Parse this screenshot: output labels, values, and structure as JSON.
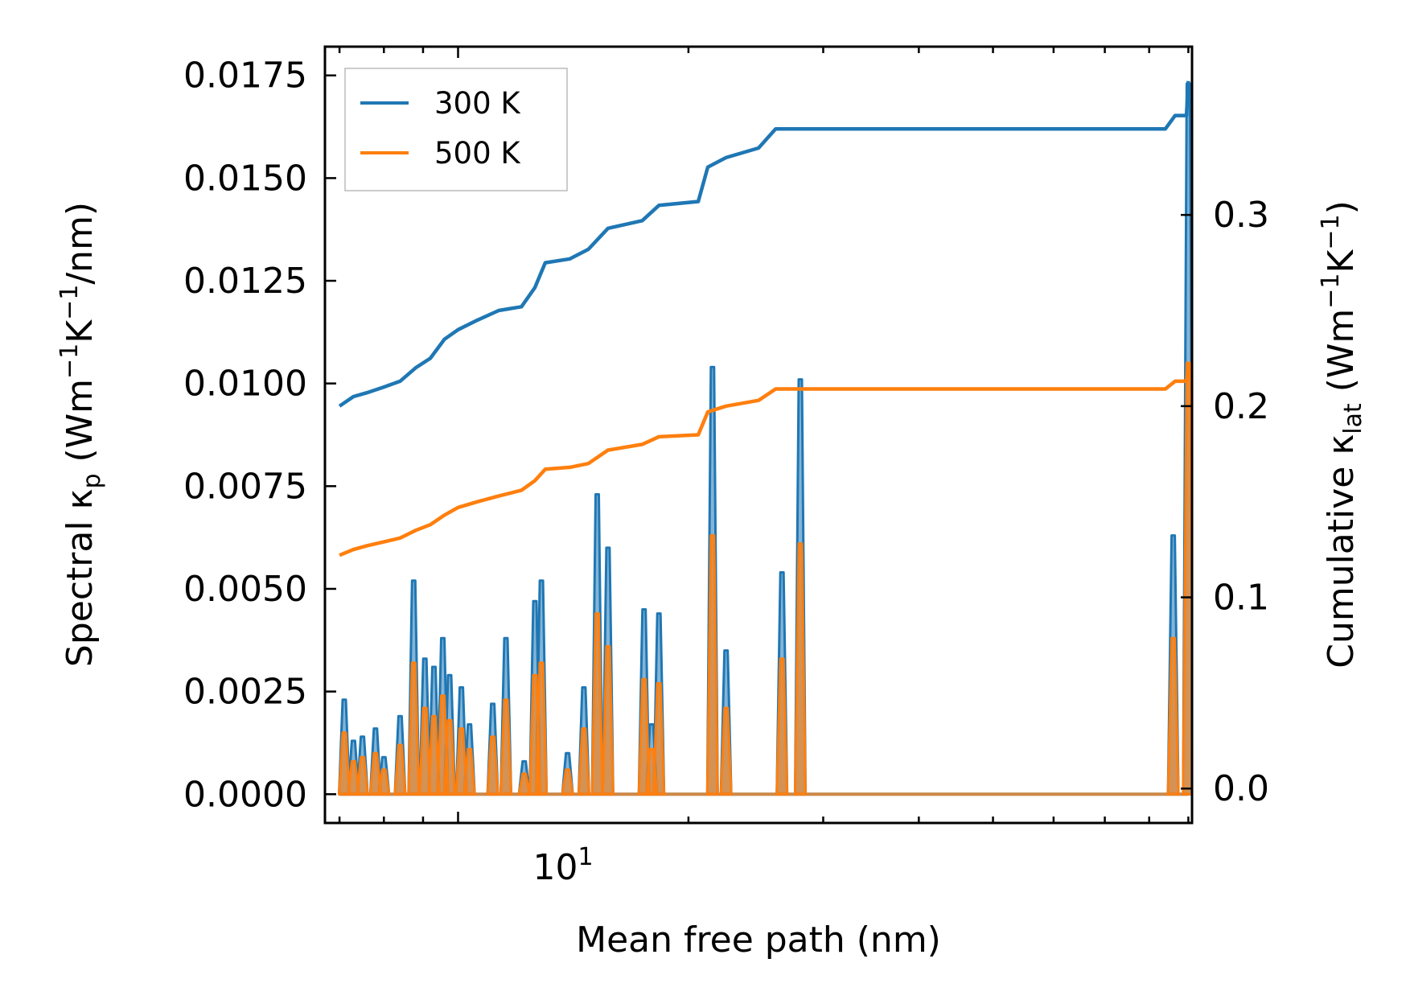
{
  "chart_data": {
    "type": "line",
    "title": "",
    "xlabel": "Mean free path (nm)",
    "ylabel_left": {
      "main": "Spectral κ",
      "sub": "p",
      "unit_pre": " (Wm",
      "sup1": "−1",
      "mid": "K",
      "sup2": "−1",
      "unit_post": "/nm)"
    },
    "ylabel_right": {
      "main": "Cumulative κ",
      "sub": "lat",
      "unit_pre": " (Wm",
      "sup1": "−1",
      "mid": "K",
      "sup2": "−1",
      "unit_post": ")"
    },
    "x_scale": "log",
    "xlim": [
      6.7,
      91
    ],
    "x_tick_label": {
      "base": "10",
      "exp": "1"
    },
    "ylim_left": [
      -0.0007,
      0.0182
    ],
    "ylim_right": [
      -0.018,
      0.388
    ],
    "left_ticks": [
      {
        "value": 0.0,
        "label": "0.0000"
      },
      {
        "value": 0.0025,
        "label": "0.0025"
      },
      {
        "value": 0.005,
        "label": "0.0050"
      },
      {
        "value": 0.0075,
        "label": "0.0075"
      },
      {
        "value": 0.01,
        "label": "0.0100"
      },
      {
        "value": 0.0125,
        "label": "0.0125"
      },
      {
        "value": 0.015,
        "label": "0.0150"
      },
      {
        "value": 0.0175,
        "label": "0.0175"
      }
    ],
    "right_ticks": [
      {
        "value": 0.0,
        "label": "0.0"
      },
      {
        "value": 0.1,
        "label": "0.1"
      },
      {
        "value": 0.2,
        "label": "0.2"
      },
      {
        "value": 0.3,
        "label": "0.3"
      }
    ],
    "legend": {
      "location": "top-left",
      "entries": [
        "300 K",
        "500 K"
      ]
    },
    "colors": {
      "300K": "#1f77b4",
      "500K": "#ff7f0e",
      "fill_overlap": "#c7a07c"
    },
    "spectral_series": [
      {
        "name": "300 K",
        "peaks": [
          {
            "x": 7.1,
            "y": 0.0023
          },
          {
            "x": 7.3,
            "y": 0.0013
          },
          {
            "x": 7.5,
            "y": 0.0014
          },
          {
            "x": 7.8,
            "y": 0.0016
          },
          {
            "x": 8.0,
            "y": 0.0009
          },
          {
            "x": 8.4,
            "y": 0.0019
          },
          {
            "x": 8.75,
            "y": 0.0052
          },
          {
            "x": 9.05,
            "y": 0.0033
          },
          {
            "x": 9.3,
            "y": 0.0031
          },
          {
            "x": 9.55,
            "y": 0.0038
          },
          {
            "x": 9.75,
            "y": 0.0029
          },
          {
            "x": 10.1,
            "y": 0.0026
          },
          {
            "x": 10.35,
            "y": 0.0017
          },
          {
            "x": 11.1,
            "y": 0.0022
          },
          {
            "x": 11.55,
            "y": 0.0038
          },
          {
            "x": 12.2,
            "y": 0.0008
          },
          {
            "x": 12.6,
            "y": 0.0047
          },
          {
            "x": 12.85,
            "y": 0.0052
          },
          {
            "x": 13.9,
            "y": 0.001
          },
          {
            "x": 14.6,
            "y": 0.0026
          },
          {
            "x": 15.2,
            "y": 0.0073
          },
          {
            "x": 15.7,
            "y": 0.006
          },
          {
            "x": 17.5,
            "y": 0.0045
          },
          {
            "x": 17.9,
            "y": 0.0017
          },
          {
            "x": 18.3,
            "y": 0.0044
          },
          {
            "x": 21.5,
            "y": 0.0104
          },
          {
            "x": 22.4,
            "y": 0.0035
          },
          {
            "x": 26.5,
            "y": 0.0054
          },
          {
            "x": 28.0,
            "y": 0.0101
          },
          {
            "x": 86.0,
            "y": 0.0063
          },
          {
            "x": 90.0,
            "y": 0.0173
          }
        ]
      },
      {
        "name": "500 K",
        "peaks": [
          {
            "x": 7.1,
            "y": 0.0015
          },
          {
            "x": 7.3,
            "y": 0.0008
          },
          {
            "x": 7.5,
            "y": 0.0009
          },
          {
            "x": 7.8,
            "y": 0.001
          },
          {
            "x": 8.0,
            "y": 0.0006
          },
          {
            "x": 8.4,
            "y": 0.0012
          },
          {
            "x": 8.75,
            "y": 0.0032
          },
          {
            "x": 9.05,
            "y": 0.0021
          },
          {
            "x": 9.3,
            "y": 0.0019
          },
          {
            "x": 9.55,
            "y": 0.0024
          },
          {
            "x": 9.75,
            "y": 0.0018
          },
          {
            "x": 10.1,
            "y": 0.0016
          },
          {
            "x": 10.35,
            "y": 0.0011
          },
          {
            "x": 11.1,
            "y": 0.0014
          },
          {
            "x": 11.55,
            "y": 0.0023
          },
          {
            "x": 12.2,
            "y": 0.0005
          },
          {
            "x": 12.6,
            "y": 0.0029
          },
          {
            "x": 12.85,
            "y": 0.0032
          },
          {
            "x": 13.9,
            "y": 0.0006
          },
          {
            "x": 14.6,
            "y": 0.0016
          },
          {
            "x": 15.2,
            "y": 0.0044
          },
          {
            "x": 15.7,
            "y": 0.0036
          },
          {
            "x": 17.5,
            "y": 0.0028
          },
          {
            "x": 17.9,
            "y": 0.0011
          },
          {
            "x": 18.3,
            "y": 0.0027
          },
          {
            "x": 21.5,
            "y": 0.0063
          },
          {
            "x": 22.4,
            "y": 0.0021
          },
          {
            "x": 26.5,
            "y": 0.0033
          },
          {
            "x": 28.0,
            "y": 0.0061
          },
          {
            "x": 86.0,
            "y": 0.0038
          },
          {
            "x": 90.0,
            "y": 0.0105
          }
        ]
      }
    ],
    "cumulative_series": [
      {
        "name": "300 K",
        "points": [
          [
            7.0,
            0.2
          ],
          [
            7.3,
            0.205
          ],
          [
            7.6,
            0.207
          ],
          [
            8.0,
            0.21
          ],
          [
            8.4,
            0.213
          ],
          [
            8.8,
            0.22
          ],
          [
            9.2,
            0.225
          ],
          [
            9.6,
            0.235
          ],
          [
            10.0,
            0.24
          ],
          [
            10.6,
            0.245
          ],
          [
            11.3,
            0.25
          ],
          [
            12.1,
            0.252
          ],
          [
            12.6,
            0.262
          ],
          [
            13.0,
            0.275
          ],
          [
            14.0,
            0.277
          ],
          [
            14.8,
            0.282
          ],
          [
            15.7,
            0.293
          ],
          [
            17.4,
            0.297
          ],
          [
            18.3,
            0.305
          ],
          [
            20.6,
            0.307
          ],
          [
            21.2,
            0.325
          ],
          [
            22.4,
            0.33
          ],
          [
            24.7,
            0.335
          ],
          [
            26.0,
            0.345
          ],
          [
            84.0,
            0.345
          ],
          [
            86.5,
            0.352
          ],
          [
            89.5,
            0.352
          ],
          [
            90.0,
            0.37
          ]
        ]
      },
      {
        "name": "500 K",
        "points": [
          [
            7.0,
            0.122
          ],
          [
            7.3,
            0.125
          ],
          [
            7.6,
            0.127
          ],
          [
            8.0,
            0.129
          ],
          [
            8.4,
            0.131
          ],
          [
            8.8,
            0.135
          ],
          [
            9.2,
            0.138
          ],
          [
            9.6,
            0.143
          ],
          [
            10.0,
            0.147
          ],
          [
            10.6,
            0.15
          ],
          [
            11.3,
            0.153
          ],
          [
            12.1,
            0.156
          ],
          [
            12.6,
            0.161
          ],
          [
            13.0,
            0.167
          ],
          [
            14.0,
            0.168
          ],
          [
            14.8,
            0.17
          ],
          [
            15.7,
            0.177
          ],
          [
            17.4,
            0.18
          ],
          [
            18.3,
            0.184
          ],
          [
            20.6,
            0.185
          ],
          [
            21.2,
            0.197
          ],
          [
            22.4,
            0.2
          ],
          [
            24.7,
            0.203
          ],
          [
            26.0,
            0.209
          ],
          [
            84.0,
            0.209
          ],
          [
            86.5,
            0.213
          ],
          [
            89.5,
            0.213
          ],
          [
            90.0,
            0.223
          ]
        ]
      }
    ]
  }
}
